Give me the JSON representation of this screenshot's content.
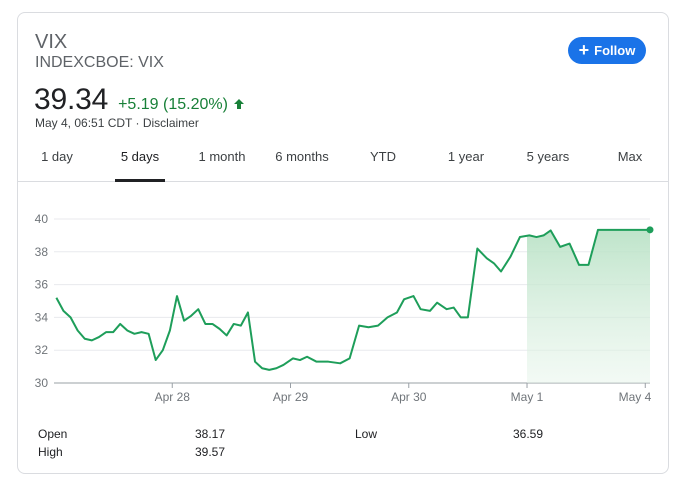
{
  "header": {
    "name": "VIX",
    "exchange_symbol": "INDEXCBOE: VIX",
    "price": "39.34",
    "change": "+5.19 (15.20%)",
    "meta": "May 4, 06:51 CDT · Disclaimer",
    "follow_label": "Follow"
  },
  "tabs": [
    "1 day",
    "5 days",
    "1 month",
    "6 months",
    "YTD",
    "1 year",
    "5 years",
    "Max"
  ],
  "active_tab": "5 days",
  "colors": {
    "accent": "#1a73e8",
    "up": "#188038",
    "line": "#1e9e5a",
    "area": "#ceead6"
  },
  "chart_data": {
    "type": "area",
    "ylim": [
      30,
      40
    ],
    "yticks": [
      "30",
      "32",
      "34",
      "36",
      "38",
      "40"
    ],
    "xticks": [
      "Apr 28",
      "Apr 29",
      "Apr 30",
      "May 1",
      "May 4"
    ],
    "xtick_positions": [
      1,
      2,
      3,
      4,
      5
    ],
    "grid": true,
    "current_period_start": 4,
    "x": [
      0.02,
      0.08,
      0.14,
      0.2,
      0.26,
      0.32,
      0.38,
      0.44,
      0.5,
      0.56,
      0.62,
      0.68,
      0.74,
      0.8,
      0.86,
      0.92,
      0.98,
      1.04,
      1.1,
      1.16,
      1.22,
      1.28,
      1.34,
      1.4,
      1.46,
      1.52,
      1.58,
      1.64,
      1.7,
      1.76,
      1.82,
      1.88,
      1.94,
      2.02,
      2.08,
      2.14,
      2.22,
      2.32,
      2.42,
      2.5,
      2.58,
      2.66,
      2.74,
      2.82,
      2.9,
      2.96,
      3.04,
      3.1,
      3.18,
      3.24,
      3.32,
      3.38,
      3.44,
      3.5,
      3.58,
      3.66,
      3.72,
      3.78,
      3.86,
      3.94,
      4.02,
      4.08,
      4.14,
      4.2,
      4.28,
      4.36,
      4.44,
      4.52,
      4.6,
      4.66,
      4.72,
      4.8,
      4.86,
      4.92,
      4.98,
      5.04
    ],
    "y": [
      35.2,
      34.4,
      34.0,
      33.2,
      32.7,
      32.6,
      32.8,
      33.1,
      33.1,
      33.6,
      33.2,
      33.0,
      33.1,
      33.0,
      31.4,
      32.0,
      33.2,
      35.3,
      33.8,
      34.1,
      34.5,
      33.6,
      33.6,
      33.3,
      32.9,
      33.6,
      33.5,
      34.3,
      31.3,
      30.9,
      30.8,
      30.9,
      31.1,
      31.5,
      31.4,
      31.6,
      31.3,
      31.3,
      31.2,
      31.5,
      33.5,
      33.4,
      33.5,
      34.0,
      34.3,
      35.1,
      35.3,
      34.5,
      34.4,
      34.9,
      34.5,
      34.6,
      34.0,
      34.0,
      38.2,
      37.6,
      37.3,
      36.8,
      37.7,
      38.9,
      39.0,
      38.9,
      39.0,
      39.3,
      38.3,
      38.5,
      37.2,
      37.2,
      39.34,
      39.34,
      39.34,
      39.34,
      39.34,
      39.34,
      39.34,
      39.34
    ]
  },
  "stats": {
    "open_label": "Open",
    "open_value": "38.17",
    "high_label": "High",
    "high_value": "39.57",
    "low_label": "Low",
    "low_value": "36.59"
  }
}
